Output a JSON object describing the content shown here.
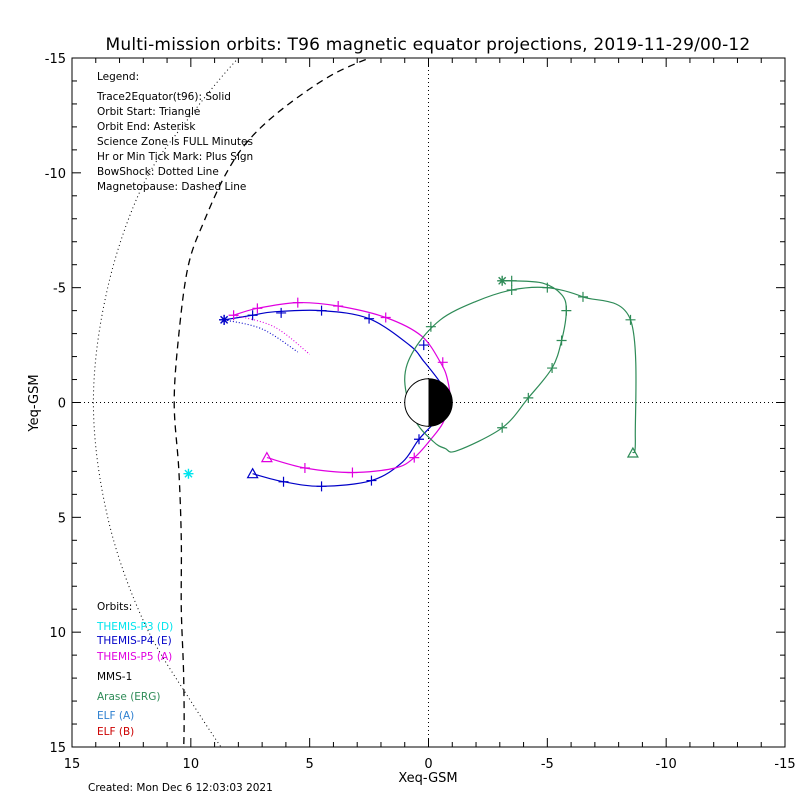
{
  "chart_data": {
    "type": "line",
    "title": "Multi-mission orbits: T96 magnetic equator projections, 2019-11-29/00-12",
    "xlabel": "Xeq-GSM",
    "ylabel": "Yeq-GSM",
    "xlim": [
      15,
      -15
    ],
    "ylim": [
      15,
      -15
    ],
    "x_ticks": [
      "15",
      "10",
      "5",
      "0",
      "-5",
      "-10",
      "-15"
    ],
    "y_ticks": [
      "-15",
      "-10",
      "-5",
      "0",
      "5",
      "10",
      "15"
    ],
    "crosshair_lines": "dotted at x=0 and y=0",
    "legend": {
      "heading": "Legend:",
      "items": [
        "Trace2Equator(t96): Solid",
        "Orbit Start: Triangle",
        "Orbit End: Asterisk",
        "Science Zone is FULL Minutes",
        "Hr or Min Tick Mark: Plus Sign",
        "BowShock: Dotted Line",
        "Magnetopause: Dashed Line"
      ]
    },
    "orbits_heading": "Orbits:",
    "orbit_labels": [
      {
        "name": "THEMIS-P3 (D)",
        "color": "#00e5ee"
      },
      {
        "name": "THEMIS-P4 (E)",
        "color": "#0000c8"
      },
      {
        "name": "THEMIS-P5 (A)",
        "color": "#e000e0"
      },
      {
        "name": "MMS-1",
        "color": "#000000"
      },
      {
        "name": "Arase (ERG)",
        "color": "#2e8b57"
      },
      {
        "name": "ELF (A)",
        "color": "#2f80d0"
      },
      {
        "name": "ELF (B)",
        "color": "#cc0000"
      }
    ],
    "created": "Created: Mon Dec  6 12:03:03 2021",
    "earth": {
      "radius": 1
    },
    "magnetopause": [
      [
        10.5,
        18
      ],
      [
        10.3,
        15
      ],
      [
        10.3,
        12
      ],
      [
        10.4,
        9
      ],
      [
        10.4,
        6
      ],
      [
        10.5,
        3
      ],
      [
        10.7,
        0
      ],
      [
        10.5,
        -3
      ],
      [
        10.1,
        -6
      ],
      [
        9.4,
        -8
      ],
      [
        8.5,
        -10
      ],
      [
        7.5,
        -11.5
      ],
      [
        6,
        -12.9
      ],
      [
        4,
        -14.3
      ],
      [
        2,
        -15.2
      ]
    ],
    "bowshock": [
      [
        6,
        18
      ],
      [
        8,
        16
      ],
      [
        10,
        13
      ],
      [
        12,
        9.5
      ],
      [
        13.5,
        5
      ],
      [
        14.1,
        0
      ],
      [
        13.5,
        -5
      ],
      [
        12,
        -9.5
      ],
      [
        10,
        -12.5
      ],
      [
        8,
        -15
      ],
      [
        6,
        -17
      ]
    ],
    "series": [
      {
        "name": "THEMIS-P3 (D)",
        "color": "#00e5ee",
        "points": [
          [
            10.1,
            3.1
          ]
        ],
        "end_marker": [
          10.1,
          3.1
        ]
      },
      {
        "name": "THEMIS-P4 (E)",
        "color": "#0000c8",
        "points": [
          [
            7.4,
            3.1
          ],
          [
            6.1,
            3.45
          ],
          [
            4.5,
            3.65
          ],
          [
            2.4,
            3.4
          ],
          [
            1.1,
            2.6
          ],
          [
            0.4,
            1.6
          ],
          [
            -0.5,
            0.6
          ],
          [
            -0.8,
            0
          ],
          [
            -0.6,
            -0.7
          ],
          [
            0.2,
            -1.8
          ],
          [
            0.8,
            -2.5
          ],
          [
            2.5,
            -3.65
          ],
          [
            4.5,
            -4.0
          ],
          [
            6.5,
            -3.95
          ],
          [
            7.4,
            -3.8
          ],
          [
            8.6,
            -3.6
          ]
        ],
        "start_marker": [
          7.4,
          3.1
        ],
        "end_marker": [
          8.6,
          -3.6
        ],
        "ticks": [
          [
            6.1,
            3.45
          ],
          [
            4.5,
            3.65
          ],
          [
            2.4,
            3.4
          ],
          [
            0.4,
            1.6
          ],
          [
            0.2,
            -2.5
          ],
          [
            2.5,
            -3.65
          ],
          [
            4.5,
            -4.0
          ],
          [
            6.2,
            -3.9
          ],
          [
            7.4,
            -3.8
          ],
          [
            8.6,
            -3.6
          ]
        ],
        "dotted_tail": [
          [
            8.6,
            -3.6
          ],
          [
            7.0,
            -3.2
          ],
          [
            5.5,
            -2.2
          ]
        ]
      },
      {
        "name": "THEMIS-P5 (A)",
        "color": "#e000e0",
        "points": [
          [
            6.8,
            2.4
          ],
          [
            5.2,
            2.85
          ],
          [
            3.2,
            3.05
          ],
          [
            1.4,
            2.85
          ],
          [
            0.6,
            2.4
          ],
          [
            -0.1,
            1.6
          ],
          [
            -0.6,
            0.9
          ],
          [
            -0.9,
            0
          ],
          [
            -0.8,
            -1.0
          ],
          [
            -0.5,
            -1.75
          ],
          [
            0.3,
            -2.9
          ],
          [
            1.8,
            -3.7
          ],
          [
            3.8,
            -4.2
          ],
          [
            5.5,
            -4.35
          ],
          [
            7.2,
            -4.1
          ],
          [
            8.2,
            -3.8
          ]
        ],
        "start_marker": [
          6.8,
          2.4
        ],
        "ticks": [
          [
            5.2,
            2.85
          ],
          [
            3.2,
            3.05
          ],
          [
            0.6,
            2.4
          ],
          [
            -0.6,
            -1.75
          ],
          [
            1.8,
            -3.7
          ],
          [
            3.8,
            -4.2
          ],
          [
            5.5,
            -4.35
          ],
          [
            7.2,
            -4.1
          ],
          [
            8.2,
            -3.8
          ]
        ],
        "dotted_tail": [
          [
            8.2,
            -3.8
          ],
          [
            6.5,
            -3.3
          ],
          [
            5.0,
            -2.1
          ]
        ]
      },
      {
        "name": "Arase (ERG)",
        "color": "#2e8b57",
        "points": [
          [
            -8.6,
            2.2
          ],
          [
            -8.7,
            1.5
          ],
          [
            -8.5,
            -3.6
          ],
          [
            -6.5,
            -4.6
          ],
          [
            -5.0,
            -5.0
          ],
          [
            -3.5,
            -4.9
          ],
          [
            -2.0,
            -4.4
          ],
          [
            -0.5,
            -3.6
          ],
          [
            0.6,
            -2.3
          ],
          [
            1.0,
            -1.0
          ],
          [
            0.6,
            0.7
          ],
          [
            -0.2,
            1.7
          ],
          [
            -0.7,
            2.0
          ],
          [
            -1.2,
            2.1
          ],
          [
            -3.1,
            1.1
          ],
          [
            -4.2,
            -0.2
          ],
          [
            -5.2,
            -1.5
          ],
          [
            -5.6,
            -2.7
          ],
          [
            -5.8,
            -4.0
          ],
          [
            -5.6,
            -4.7
          ],
          [
            -4.8,
            -5.2
          ],
          [
            -3.5,
            -5.3
          ],
          [
            -3.1,
            -5.3
          ]
        ],
        "start_marker": [
          -8.6,
          2.2
        ],
        "end_marker": [
          -3.1,
          -5.3
        ],
        "ticks": [
          [
            -8.5,
            -3.6
          ],
          [
            -6.5,
            -4.6
          ],
          [
            -5.0,
            -5.0
          ],
          [
            -3.5,
            -4.9
          ],
          [
            -0.1,
            -3.3
          ],
          [
            -3.1,
            1.1
          ],
          [
            -4.2,
            -0.2
          ],
          [
            -5.2,
            -1.5
          ],
          [
            -5.6,
            -2.7
          ],
          [
            -5.8,
            -4.0
          ],
          [
            -3.5,
            -5.3
          ]
        ]
      }
    ]
  }
}
